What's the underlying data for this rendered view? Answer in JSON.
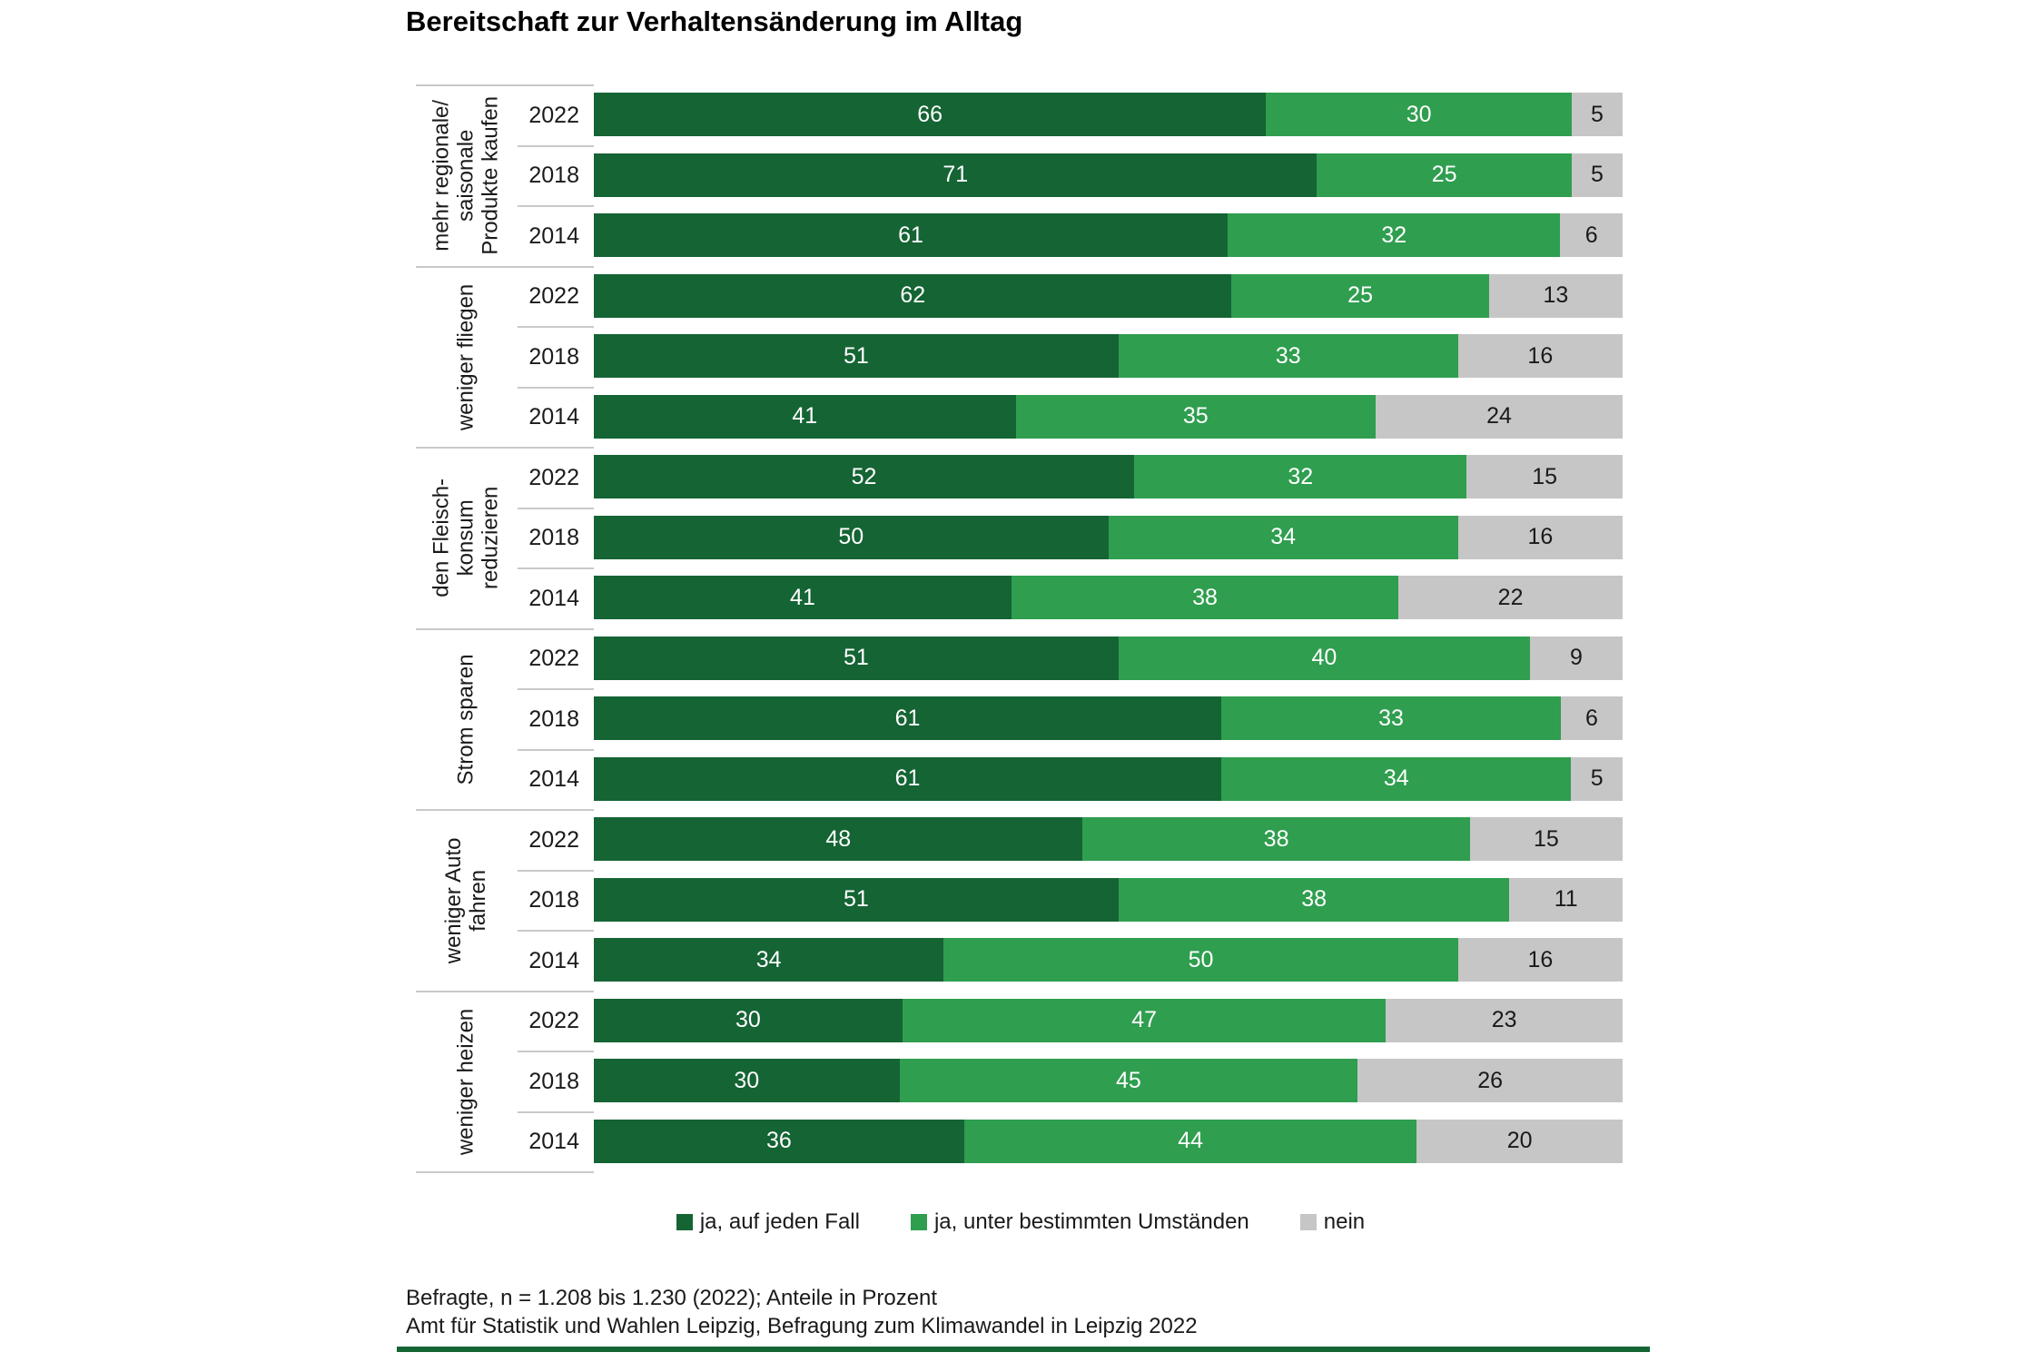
{
  "title": "Bereitschaft zur Verhaltensänderung im Alltag",
  "legend": [
    {
      "label": "ja, auf jeden Fall",
      "color": "#156434"
    },
    {
      "label": "ja, unter bestimmten Umständen",
      "color": "#2F9E4F"
    },
    {
      "label": "nein",
      "color": "#C6C6C6"
    }
  ],
  "footer": {
    "line1": "Befragte, n = 1.208 bis 1.230 (2022); Anteile in Prozent",
    "line2": "Amt für Statistik und Wahlen Leipzig, Befragung zum Klimawandel in Leipzig 2022"
  },
  "rule_color": "#156434",
  "chart_data": {
    "type": "bar",
    "orientation": "horizontal",
    "stacked": true,
    "unit": "Prozent",
    "xlim": [
      0,
      100
    ],
    "grid": false,
    "legend_position": "bottom",
    "series_names": [
      "ja, auf jeden Fall",
      "ja, unter bestimmten Umständen",
      "nein"
    ],
    "series_colors": [
      "#156434",
      "#2F9E4F",
      "#C6C6C6"
    ],
    "value_label_colors": [
      "#ffffff",
      "#ffffff",
      "#1a1a1a"
    ],
    "groups": [
      {
        "category": "mehr regionale/\nsaisonale\nProdukte kaufen",
        "rows": [
          {
            "year": "2022",
            "values": [
              66,
              30,
              5
            ]
          },
          {
            "year": "2018",
            "values": [
              71,
              25,
              5
            ]
          },
          {
            "year": "2014",
            "values": [
              61,
              32,
              6
            ]
          }
        ]
      },
      {
        "category": "weniger fliegen",
        "rows": [
          {
            "year": "2022",
            "values": [
              62,
              25,
              13
            ]
          },
          {
            "year": "2018",
            "values": [
              51,
              33,
              16
            ]
          },
          {
            "year": "2014",
            "values": [
              41,
              35,
              24
            ]
          }
        ]
      },
      {
        "category": "den Fleisch-\nkonsum\nreduzieren",
        "rows": [
          {
            "year": "2022",
            "values": [
              52,
              32,
              15
            ]
          },
          {
            "year": "2018",
            "values": [
              50,
              34,
              16
            ]
          },
          {
            "year": "2014",
            "values": [
              41,
              38,
              22
            ]
          }
        ]
      },
      {
        "category": "Strom sparen",
        "rows": [
          {
            "year": "2022",
            "values": [
              51,
              40,
              9
            ]
          },
          {
            "year": "2018",
            "values": [
              61,
              33,
              6
            ]
          },
          {
            "year": "2014",
            "values": [
              61,
              34,
              5
            ]
          }
        ]
      },
      {
        "category": "weniger Auto\nfahren",
        "rows": [
          {
            "year": "2022",
            "values": [
              48,
              38,
              15
            ]
          },
          {
            "year": "2018",
            "values": [
              51,
              38,
              11
            ]
          },
          {
            "year": "2014",
            "values": [
              34,
              50,
              16
            ]
          }
        ]
      },
      {
        "category": "weniger heizen",
        "rows": [
          {
            "year": "2022",
            "values": [
              30,
              47,
              23
            ]
          },
          {
            "year": "2018",
            "values": [
              30,
              45,
              26
            ]
          },
          {
            "year": "2014",
            "values": [
              36,
              44,
              20
            ]
          }
        ]
      }
    ]
  }
}
